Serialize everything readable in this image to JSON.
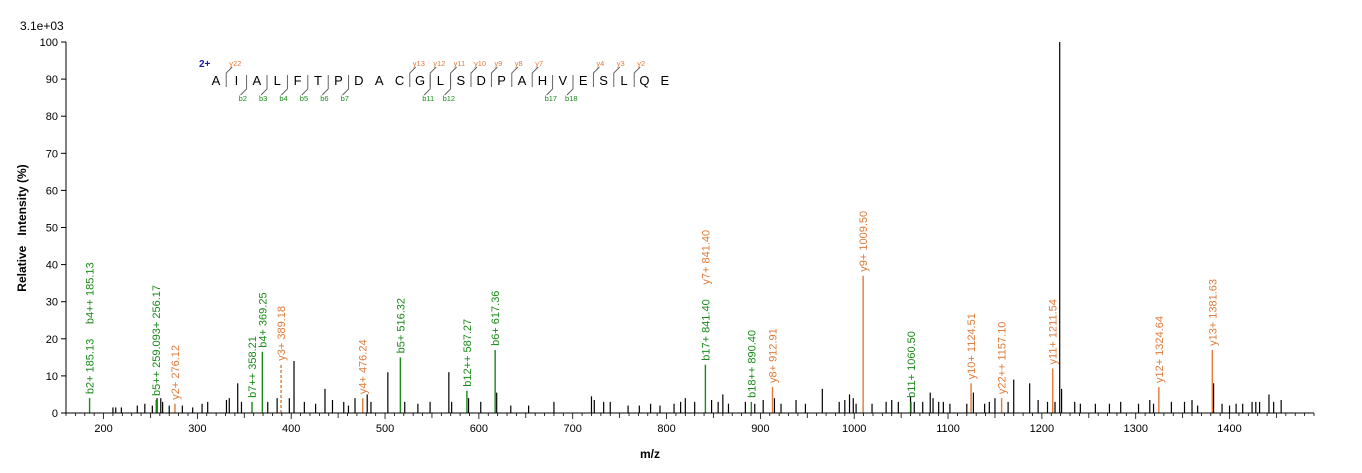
{
  "chart_data": {
    "type": "bar",
    "scale_label": "3.1e+03",
    "xlabel": "m/z",
    "ylabel": "Relative   Intensity (%)",
    "xlim": [
      160,
      1490
    ],
    "ylim": [
      0,
      100
    ],
    "xticks": [
      200,
      300,
      400,
      500,
      600,
      700,
      800,
      900,
      1000,
      1100,
      1200,
      1300,
      1400
    ],
    "yticks": [
      0,
      10,
      20,
      30,
      40,
      50,
      60,
      70,
      80,
      90,
      100
    ],
    "colors": {
      "b": "#1a8a1a",
      "y": "#e07b39",
      "other": "#000000",
      "charge": "#1a1aa0"
    },
    "sequence": {
      "charge": "2+",
      "residues": [
        "A",
        "I",
        "A",
        "L",
        "F",
        "T",
        "P",
        "D",
        "A",
        "C",
        "G",
        "L",
        "S",
        "D",
        "P",
        "A",
        "H",
        "V",
        "E",
        "S",
        "L",
        "Q",
        "E"
      ],
      "y_marks": [
        {
          "after": 1,
          "label": "y22"
        },
        {
          "after": 10,
          "label": "y13"
        },
        {
          "after": 11,
          "label": "y12"
        },
        {
          "after": 12,
          "label": "y11"
        },
        {
          "after": 13,
          "label": "y10"
        },
        {
          "after": 14,
          "label": "y9"
        },
        {
          "after": 15,
          "label": "y8"
        },
        {
          "after": 16,
          "label": "y7"
        },
        {
          "after": 19,
          "label": "y4"
        },
        {
          "after": 20,
          "label": "y3"
        },
        {
          "after": 21,
          "label": "y2"
        }
      ],
      "b_marks": [
        {
          "after": 2,
          "label": "b2"
        },
        {
          "after": 3,
          "label": "b3"
        },
        {
          "after": 4,
          "label": "b4"
        },
        {
          "after": 5,
          "label": "b5"
        },
        {
          "after": 6,
          "label": "b6"
        },
        {
          "after": 7,
          "label": "b7"
        },
        {
          "after": 11,
          "label": "b11"
        },
        {
          "after": 12,
          "label": "b12"
        },
        {
          "after": 17,
          "label": "b17"
        },
        {
          "after": 18,
          "label": "b18"
        }
      ]
    },
    "annotated_peaks": [
      {
        "mz": 185.13,
        "intensity": 4,
        "ion": "b",
        "label": "b2+ 185.13"
      },
      {
        "mz": 185.13,
        "intensity": 4,
        "ion": "b",
        "label": "b4++ 185.13",
        "stack": 1
      },
      {
        "mz": 256.17,
        "intensity": 3.5,
        "ion": "b",
        "label": "b5++ 259.093+ 256.17"
      },
      {
        "mz": 276.12,
        "intensity": 2.5,
        "ion": "y",
        "label": "y2+ 276.12"
      },
      {
        "mz": 358.21,
        "intensity": 3,
        "ion": "b",
        "label": "b7++ 358.21"
      },
      {
        "mz": 369.25,
        "intensity": 16.5,
        "ion": "b",
        "label": "b4+ 369.25"
      },
      {
        "mz": 389.18,
        "intensity": 13,
        "ion": "y",
        "label": "y3+ 389.18",
        "dashed": true
      },
      {
        "mz": 476.24,
        "intensity": 4,
        "ion": "y",
        "label": "y4+ 476.24"
      },
      {
        "mz": 516.32,
        "intensity": 15,
        "ion": "b",
        "label": "b5+ 516.32"
      },
      {
        "mz": 587.27,
        "intensity": 6,
        "ion": "b",
        "label": "b12++ 587.27"
      },
      {
        "mz": 617.36,
        "intensity": 17,
        "ion": "b",
        "label": "b6+ 617.36"
      },
      {
        "mz": 841.4,
        "intensity": 13,
        "ion": "b",
        "label": "b17+ 841.40"
      },
      {
        "mz": 841.4,
        "intensity": 13,
        "ion": "y",
        "label": "y7+ 841.40",
        "stack": 1
      },
      {
        "mz": 890.4,
        "intensity": 3,
        "ion": "b",
        "label": "b18++ 890.40"
      },
      {
        "mz": 912.91,
        "intensity": 7,
        "ion": "y",
        "label": "y8+ 912.91"
      },
      {
        "mz": 1009.5,
        "intensity": 37,
        "ion": "y",
        "label": "y9+ 1009.50"
      },
      {
        "mz": 1060.5,
        "intensity": 3,
        "ion": "b",
        "label": "b11+ 1060.50"
      },
      {
        "mz": 1124.51,
        "intensity": 8,
        "ion": "y",
        "label": "y10+ 1124.51"
      },
      {
        "mz": 1157.1,
        "intensity": 4,
        "ion": "y",
        "label": "y22++ 1157.10"
      },
      {
        "mz": 1211.54,
        "intensity": 12,
        "ion": "y",
        "label": "y11+ 1211.54"
      },
      {
        "mz": 1324.64,
        "intensity": 7,
        "ion": "y",
        "label": "y12+ 1324.64"
      },
      {
        "mz": 1381.63,
        "intensity": 17,
        "ion": "y",
        "label": "y13+ 1381.63"
      }
    ],
    "unlabeled_peaks": [
      [
        210,
        1.5
      ],
      [
        213,
        1.5
      ],
      [
        219,
        1.5
      ],
      [
        236,
        2
      ],
      [
        244,
        2.5
      ],
      [
        252,
        2
      ],
      [
        257,
        4
      ],
      [
        261,
        4
      ],
      [
        263,
        3
      ],
      [
        270,
        2
      ],
      [
        284,
        2
      ],
      [
        295,
        1.5
      ],
      [
        305,
        2.5
      ],
      [
        311,
        3
      ],
      [
        331,
        3.5
      ],
      [
        334,
        4
      ],
      [
        343,
        8
      ],
      [
        347,
        3
      ],
      [
        375,
        3
      ],
      [
        385,
        4
      ],
      [
        398,
        4
      ],
      [
        403,
        14
      ],
      [
        414,
        3
      ],
      [
        426,
        2.5
      ],
      [
        436,
        6.5
      ],
      [
        444,
        3.5
      ],
      [
        456,
        3
      ],
      [
        461,
        2
      ],
      [
        468,
        4
      ],
      [
        481,
        5
      ],
      [
        485,
        3
      ],
      [
        503,
        11
      ],
      [
        521,
        3
      ],
      [
        535,
        2.5
      ],
      [
        548,
        3
      ],
      [
        568,
        11
      ],
      [
        571,
        3
      ],
      [
        589,
        4
      ],
      [
        602,
        3
      ],
      [
        619,
        5.5
      ],
      [
        634,
        2
      ],
      [
        653,
        2
      ],
      [
        680,
        3
      ],
      [
        720,
        4.5
      ],
      [
        723,
        3.5
      ],
      [
        733,
        3
      ],
      [
        740,
        3
      ],
      [
        759,
        2
      ],
      [
        771,
        2
      ],
      [
        783,
        2.5
      ],
      [
        793,
        2
      ],
      [
        808,
        2.5
      ],
      [
        815,
        3
      ],
      [
        820,
        4
      ],
      [
        830,
        3
      ],
      [
        848,
        3.5
      ],
      [
        855,
        3
      ],
      [
        860,
        5
      ],
      [
        866,
        2.5
      ],
      [
        884,
        3
      ],
      [
        894,
        2.5
      ],
      [
        903,
        3.5
      ],
      [
        915,
        4
      ],
      [
        922,
        2.5
      ],
      [
        938,
        3.5
      ],
      [
        948,
        2.5
      ],
      [
        966,
        6.5
      ],
      [
        984,
        3
      ],
      [
        990,
        3.5
      ],
      [
        995,
        5
      ],
      [
        999,
        4
      ],
      [
        1002,
        2.5
      ],
      [
        1019,
        2.5
      ],
      [
        1034,
        3
      ],
      [
        1040,
        3.5
      ],
      [
        1047,
        3
      ],
      [
        1060,
        4.5
      ],
      [
        1064,
        3
      ],
      [
        1073,
        3
      ],
      [
        1081,
        5.5
      ],
      [
        1084,
        4
      ],
      [
        1090,
        3
      ],
      [
        1095,
        3
      ],
      [
        1102,
        2.5
      ],
      [
        1120,
        2.5
      ],
      [
        1127,
        5.5
      ],
      [
        1139,
        2.5
      ],
      [
        1144,
        3
      ],
      [
        1150,
        4
      ],
      [
        1164,
        3
      ],
      [
        1170,
        9
      ],
      [
        1187,
        8
      ],
      [
        1196,
        3.5
      ],
      [
        1206,
        3
      ],
      [
        1214,
        3
      ],
      [
        1219,
        100
      ],
      [
        1221,
        6.5
      ],
      [
        1235,
        3
      ],
      [
        1241,
        2.5
      ],
      [
        1257,
        2.5
      ],
      [
        1272,
        2.5
      ],
      [
        1284,
        3
      ],
      [
        1303,
        2.5
      ],
      [
        1315,
        3.5
      ],
      [
        1319,
        2.5
      ],
      [
        1338,
        3
      ],
      [
        1352,
        3
      ],
      [
        1360,
        3.5
      ],
      [
        1366,
        2
      ],
      [
        1383,
        8
      ],
      [
        1392,
        2.5
      ],
      [
        1400,
        2
      ],
      [
        1407,
        2.5
      ],
      [
        1414,
        2.5
      ],
      [
        1424,
        3
      ],
      [
        1428,
        3
      ],
      [
        1432,
        3
      ],
      [
        1442,
        5
      ],
      [
        1447,
        3
      ],
      [
        1455,
        3.5
      ]
    ]
  }
}
